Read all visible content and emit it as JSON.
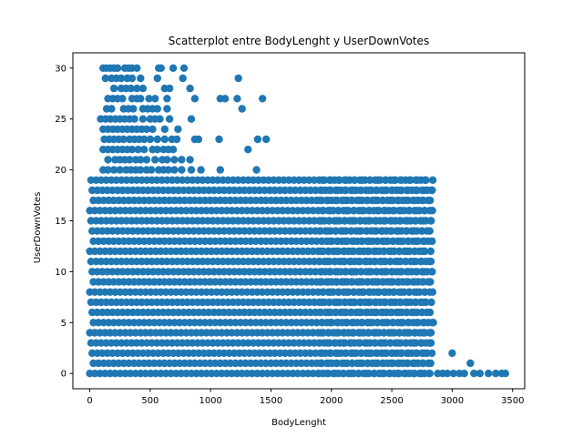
{
  "chart_data": {
    "type": "scatter",
    "title": "Scatterplot entre BodyLenght y UserDownVotes",
    "xlabel": "BodyLenght",
    "ylabel": "UserDownVotes",
    "xlim": [
      -140,
      3600
    ],
    "ylim": [
      -1.5,
      31.5
    ],
    "xticks": [
      0,
      500,
      1000,
      1500,
      2000,
      2500,
      3000,
      3500
    ],
    "yticks": [
      0,
      5,
      10,
      15,
      20,
      25,
      30
    ],
    "marker_color": "#1f77b4",
    "grid": false,
    "legend": "none",
    "dense_region": {
      "x_min": 0,
      "x_max": 2850,
      "y_min": 0,
      "y_max": 19
    },
    "outliers": [
      [
        110,
        30
      ],
      [
        140,
        30
      ],
      [
        170,
        30
      ],
      [
        200,
        30
      ],
      [
        230,
        30
      ],
      [
        290,
        30
      ],
      [
        320,
        30
      ],
      [
        350,
        30
      ],
      [
        390,
        30
      ],
      [
        570,
        30
      ],
      [
        590,
        30
      ],
      [
        690,
        30
      ],
      [
        780,
        30
      ],
      [
        130,
        29
      ],
      [
        180,
        29
      ],
      [
        220,
        29
      ],
      [
        260,
        29
      ],
      [
        310,
        29
      ],
      [
        350,
        29
      ],
      [
        420,
        29
      ],
      [
        560,
        29
      ],
      [
        770,
        29
      ],
      [
        1230,
        29
      ],
      [
        200,
        28
      ],
      [
        260,
        28
      ],
      [
        300,
        28
      ],
      [
        340,
        28
      ],
      [
        390,
        28
      ],
      [
        440,
        28
      ],
      [
        620,
        28
      ],
      [
        660,
        28
      ],
      [
        830,
        28
      ],
      [
        150,
        27
      ],
      [
        190,
        27
      ],
      [
        230,
        27
      ],
      [
        270,
        27
      ],
      [
        350,
        27
      ],
      [
        390,
        27
      ],
      [
        420,
        27
      ],
      [
        490,
        27
      ],
      [
        540,
        27
      ],
      [
        640,
        27
      ],
      [
        870,
        27
      ],
      [
        1080,
        27
      ],
      [
        1120,
        27
      ],
      [
        1220,
        27
      ],
      [
        1430,
        27
      ],
      [
        140,
        26
      ],
      [
        180,
        26
      ],
      [
        280,
        26
      ],
      [
        320,
        26
      ],
      [
        360,
        26
      ],
      [
        440,
        26
      ],
      [
        480,
        26
      ],
      [
        520,
        26
      ],
      [
        560,
        26
      ],
      [
        640,
        26
      ],
      [
        1260,
        26
      ],
      [
        90,
        25
      ],
      [
        130,
        25
      ],
      [
        170,
        25
      ],
      [
        210,
        25
      ],
      [
        250,
        25
      ],
      [
        290,
        25
      ],
      [
        330,
        25
      ],
      [
        370,
        25
      ],
      [
        440,
        25
      ],
      [
        500,
        25
      ],
      [
        540,
        25
      ],
      [
        580,
        25
      ],
      [
        660,
        25
      ],
      [
        840,
        25
      ],
      [
        110,
        24
      ],
      [
        150,
        24
      ],
      [
        190,
        24
      ],
      [
        230,
        24
      ],
      [
        270,
        24
      ],
      [
        310,
        24
      ],
      [
        350,
        24
      ],
      [
        390,
        24
      ],
      [
        430,
        24
      ],
      [
        470,
        24
      ],
      [
        520,
        24
      ],
      [
        620,
        24
      ],
      [
        730,
        24
      ],
      [
        120,
        23
      ],
      [
        160,
        23
      ],
      [
        200,
        23
      ],
      [
        240,
        23
      ],
      [
        280,
        23
      ],
      [
        330,
        23
      ],
      [
        370,
        23
      ],
      [
        410,
        23
      ],
      [
        450,
        23
      ],
      [
        500,
        23
      ],
      [
        560,
        23
      ],
      [
        620,
        23
      ],
      [
        680,
        23
      ],
      [
        720,
        23
      ],
      [
        870,
        23
      ],
      [
        900,
        23
      ],
      [
        1070,
        23
      ],
      [
        1390,
        23
      ],
      [
        1460,
        23
      ],
      [
        110,
        22
      ],
      [
        150,
        22
      ],
      [
        190,
        22
      ],
      [
        230,
        22
      ],
      [
        270,
        22
      ],
      [
        310,
        22
      ],
      [
        350,
        22
      ],
      [
        400,
        22
      ],
      [
        450,
        22
      ],
      [
        520,
        22
      ],
      [
        560,
        22
      ],
      [
        610,
        22
      ],
      [
        650,
        22
      ],
      [
        690,
        22
      ],
      [
        1310,
        22
      ],
      [
        150,
        21
      ],
      [
        210,
        21
      ],
      [
        250,
        21
      ],
      [
        290,
        21
      ],
      [
        330,
        21
      ],
      [
        380,
        21
      ],
      [
        420,
        21
      ],
      [
        470,
        21
      ],
      [
        540,
        21
      ],
      [
        600,
        21
      ],
      [
        640,
        21
      ],
      [
        700,
        21
      ],
      [
        760,
        21
      ],
      [
        830,
        21
      ],
      [
        110,
        20
      ],
      [
        150,
        20
      ],
      [
        200,
        20
      ],
      [
        250,
        20
      ],
      [
        300,
        20
      ],
      [
        340,
        20
      ],
      [
        380,
        20
      ],
      [
        420,
        20
      ],
      [
        470,
        20
      ],
      [
        510,
        20
      ],
      [
        570,
        20
      ],
      [
        610,
        20
      ],
      [
        650,
        20
      ],
      [
        700,
        20
      ],
      [
        760,
        20
      ],
      [
        840,
        20
      ],
      [
        920,
        20
      ],
      [
        1080,
        20
      ],
      [
        1380,
        20
      ],
      [
        3000,
        2
      ],
      [
        3150,
        1
      ],
      [
        2880,
        0
      ],
      [
        2920,
        0
      ],
      [
        2960,
        0
      ],
      [
        3010,
        0
      ],
      [
        3060,
        0
      ],
      [
        3100,
        0
      ],
      [
        3180,
        0
      ],
      [
        3230,
        0
      ],
      [
        3300,
        0
      ],
      [
        3360,
        0
      ],
      [
        3410,
        0
      ],
      [
        3440,
        0
      ]
    ]
  }
}
